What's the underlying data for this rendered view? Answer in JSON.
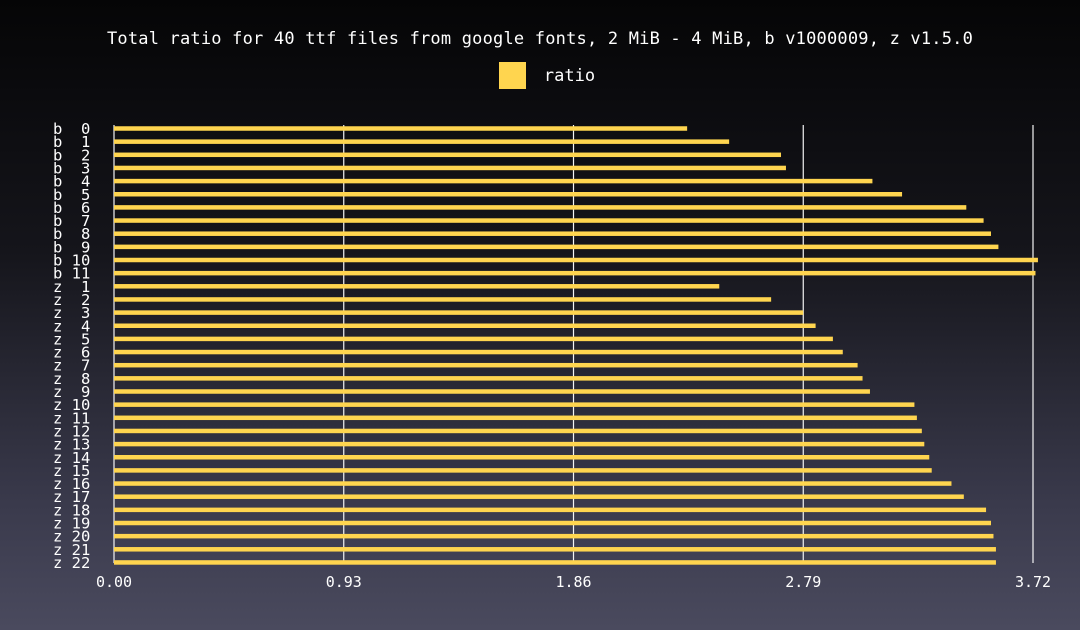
{
  "chart_data": {
    "type": "bar",
    "orientation": "horizontal",
    "title": "Total ratio for 40 ttf files from google fonts, 2 MiB - 4 MiB, b v1000009, z v1.5.0",
    "categories": [
      "b  0",
      "b  1",
      "b  2",
      "b  3",
      "b  4",
      "b  5",
      "b  6",
      "b  7",
      "b  8",
      "b  9",
      "b 10",
      "b 11",
      "z  1",
      "z  2",
      "z  3",
      "z  4",
      "z  5",
      "z  6",
      "z  7",
      "z  8",
      "z  9",
      "z 10",
      "z 11",
      "z 12",
      "z 13",
      "z 14",
      "z 15",
      "z 16",
      "z 17",
      "z 18",
      "z 19",
      "z 20",
      "z 21",
      "z 22"
    ],
    "series": [
      {
        "name": "ratio",
        "color": "#ffd54f",
        "values": [
          2.32,
          2.49,
          2.7,
          2.72,
          3.07,
          3.19,
          3.45,
          3.52,
          3.55,
          3.58,
          3.74,
          3.73,
          2.45,
          2.66,
          2.79,
          2.84,
          2.91,
          2.95,
          3.01,
          3.03,
          3.06,
          3.24,
          3.25,
          3.27,
          3.28,
          3.3,
          3.31,
          3.39,
          3.44,
          3.53,
          3.55,
          3.56,
          3.57,
          3.57
        ]
      }
    ],
    "xlim": [
      0,
      3.72
    ],
    "xticks": [
      "0.00",
      "0.93",
      "1.86",
      "2.79",
      "3.72"
    ],
    "grid": true,
    "legend": "top-center"
  }
}
